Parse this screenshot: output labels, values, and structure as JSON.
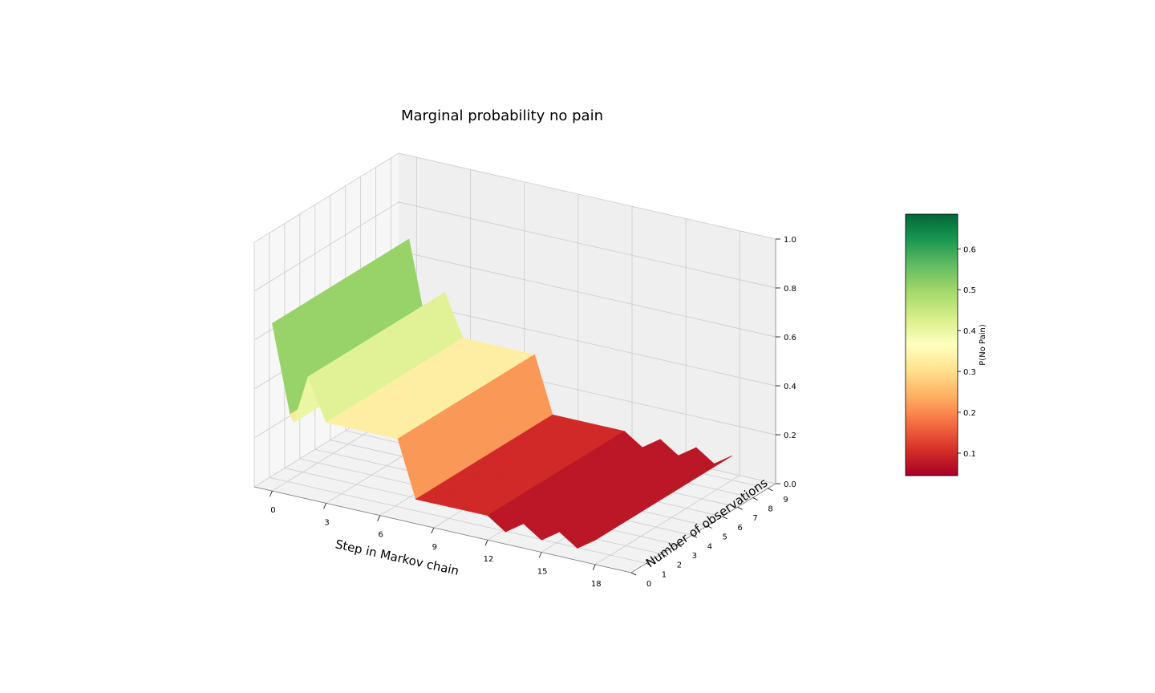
{
  "chart_data": {
    "type": "surface3d",
    "title": "Marginal probability no pain",
    "xlabel": "Step in Markov chain",
    "ylabel": "Number of observations",
    "x_ticks": [
      "0",
      "3",
      "6",
      "9",
      "12",
      "15",
      "18"
    ],
    "y_ticks": [
      "0",
      "1",
      "2",
      "3",
      "4",
      "5",
      "6",
      "7",
      "8",
      "9"
    ],
    "z_ticks": [
      "0.0",
      "0.2",
      "0.4",
      "0.6",
      "0.8",
      "1.0"
    ],
    "xlim": [
      -1,
      20
    ],
    "ylim": [
      0,
      9.5
    ],
    "zlim": [
      0,
      1
    ],
    "colormap": "RdYlGn",
    "colorbar": {
      "label": "P(No Pain)",
      "ticks": [
        "0.1",
        "0.2",
        "0.3",
        "0.4",
        "0.5",
        "0.6"
      ],
      "range": [
        0.045,
        0.685
      ]
    },
    "profile_x": [
      0,
      1,
      1.2,
      2,
      3,
      4,
      5,
      6,
      7,
      8,
      9,
      10,
      11,
      12,
      13,
      14,
      15,
      16,
      17,
      18
    ],
    "profile_z": [
      0.685,
      0.33,
      0.3,
      0.5,
      0.33,
      0.33,
      0.33,
      0.33,
      0.33,
      0.1,
      0.1,
      0.1,
      0.1,
      0.1,
      0.05,
      0.1,
      0.05,
      0.1,
      0.05,
      0.1
    ],
    "surface_y_range": [
      0,
      9
    ]
  }
}
